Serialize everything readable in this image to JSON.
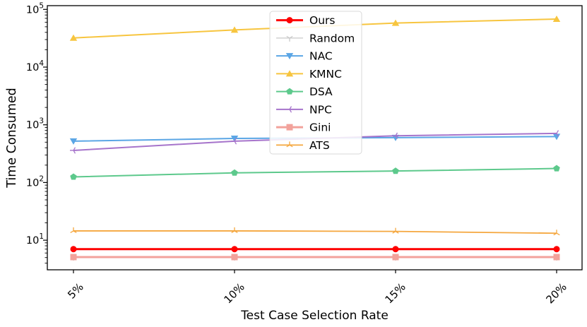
{
  "figure": {
    "xlabel": "Test Case Selection Rate",
    "ylabel": "Time Consumed",
    "x_tick_labels": [
      "5%",
      "10%",
      "15%",
      "20%"
    ],
    "y_tick_labels": [
      {
        "base": "10",
        "exp": "5"
      },
      {
        "base": "10",
        "exp": "4"
      },
      {
        "base": "10",
        "exp": "3"
      },
      {
        "base": "10",
        "exp": "2"
      },
      {
        "base": "10",
        "exp": "1"
      }
    ],
    "background_color": "#ffffff",
    "spine_color": "#000000",
    "legend_border_color": "#d9d9d9"
  },
  "chart_data": {
    "type": "line",
    "x_categories": [
      "5%",
      "10%",
      "15%",
      "20%"
    ],
    "xlabel": "Test Case Selection Rate",
    "ylabel": "Time Consumed",
    "y_scale": "log",
    "ylim": [
      3.3,
      110000
    ],
    "grid": false,
    "legend_position": "inside-top, left-of-center",
    "series": [
      {
        "name": "Ours",
        "color": "#FE0000",
        "marker": "circle",
        "line_width": 3,
        "values": [
          7.0,
          7.0,
          7.0,
          7.0
        ]
      },
      {
        "name": "Random",
        "color": "#C9C9C9",
        "marker": "tri-down",
        "line_width": 1.2,
        "values": [
          5.1,
          5.1,
          5.1,
          5.1
        ]
      },
      {
        "name": "NAC",
        "color": "#5BA6E5",
        "marker": "triangle-down",
        "line_width": 2,
        "values": [
          520,
          580,
          600,
          625
        ]
      },
      {
        "name": "KMNC",
        "color": "#F7C53F",
        "marker": "triangle-up",
        "line_width": 2,
        "values": [
          32000,
          44000,
          58000,
          68000
        ]
      },
      {
        "name": "DSA",
        "color": "#5DC98C",
        "marker": "pentagon",
        "line_width": 2,
        "values": [
          125,
          147,
          158,
          175
        ]
      },
      {
        "name": "NPC",
        "color": "#A674CB",
        "marker": "tri-left",
        "line_width": 2,
        "values": [
          360,
          520,
          645,
          710
        ]
      },
      {
        "name": "Gini",
        "color": "#F2A29B",
        "marker": "square",
        "line_width": 3,
        "values": [
          5.1,
          5.1,
          5.1,
          5.1
        ]
      },
      {
        "name": "ATS",
        "color": "#F5A73E",
        "marker": "tri-up",
        "line_width": 1.8,
        "values": [
          14.5,
          14.5,
          14.2,
          13.2
        ]
      }
    ]
  }
}
